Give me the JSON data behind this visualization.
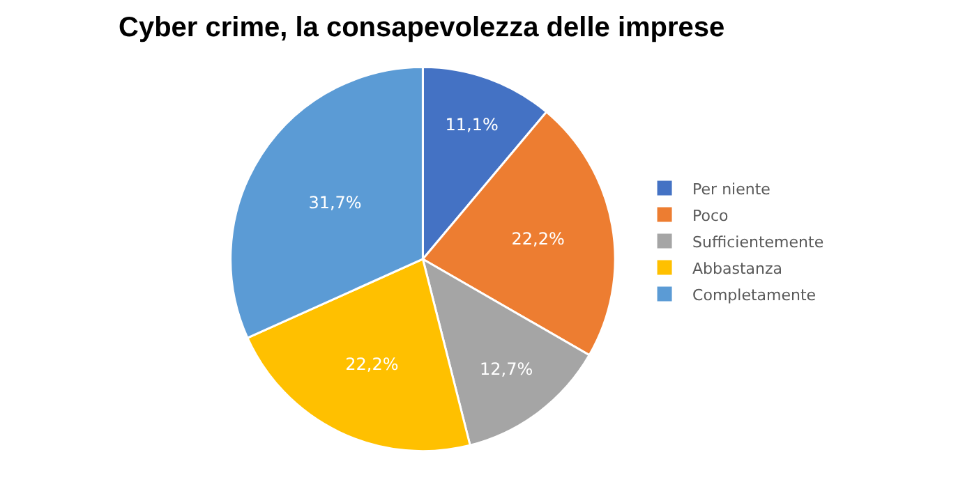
{
  "chart_data": {
    "type": "pie",
    "title": "Cyber crime, la consapevolezza delle imprese",
    "categories": [
      "Per niente",
      "Poco",
      "Sufficientemente",
      "Abbastanza",
      "Completamente"
    ],
    "values": [
      11.1,
      22.2,
      12.7,
      22.2,
      31.7
    ],
    "value_labels": [
      "11,1%",
      "22,2%",
      "12,7%",
      "22,2%",
      "31,7%"
    ],
    "colors": [
      "#4472c4",
      "#ed7d31",
      "#a5a5a5",
      "#ffc000",
      "#5b9bd5"
    ],
    "legend": "right"
  }
}
